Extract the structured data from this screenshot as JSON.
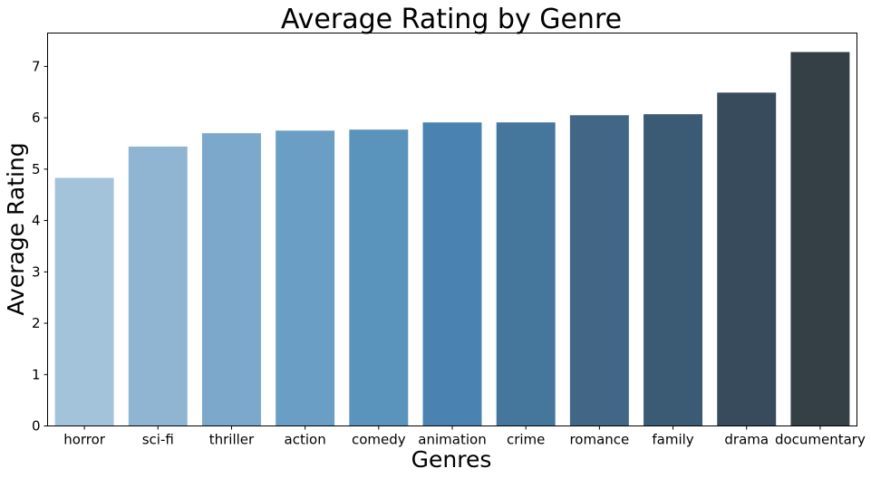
{
  "chart_data": {
    "type": "bar",
    "title": "Average Rating by Genre",
    "xlabel": "Genres",
    "ylabel": "Average Rating",
    "categories": [
      "horror",
      "sci-fi",
      "thriller",
      "action",
      "comedy",
      "animation",
      "crime",
      "romance",
      "family",
      "drama",
      "documentary"
    ],
    "values": [
      4.83,
      5.44,
      5.7,
      5.75,
      5.77,
      5.91,
      5.91,
      6.05,
      6.07,
      6.49,
      7.28
    ],
    "colors": [
      "#a3c3db",
      "#8fb5d3",
      "#7ba8cb",
      "#6a9ec5",
      "#5a93bc",
      "#4a83b1",
      "#45769b",
      "#426786",
      "#3b5b74",
      "#374b5c",
      "#353f46"
    ],
    "yticks": [
      0,
      1,
      2,
      3,
      4,
      5,
      6,
      7
    ],
    "ylim": [
      0,
      7.65
    ],
    "grid": false,
    "legend": "none"
  }
}
